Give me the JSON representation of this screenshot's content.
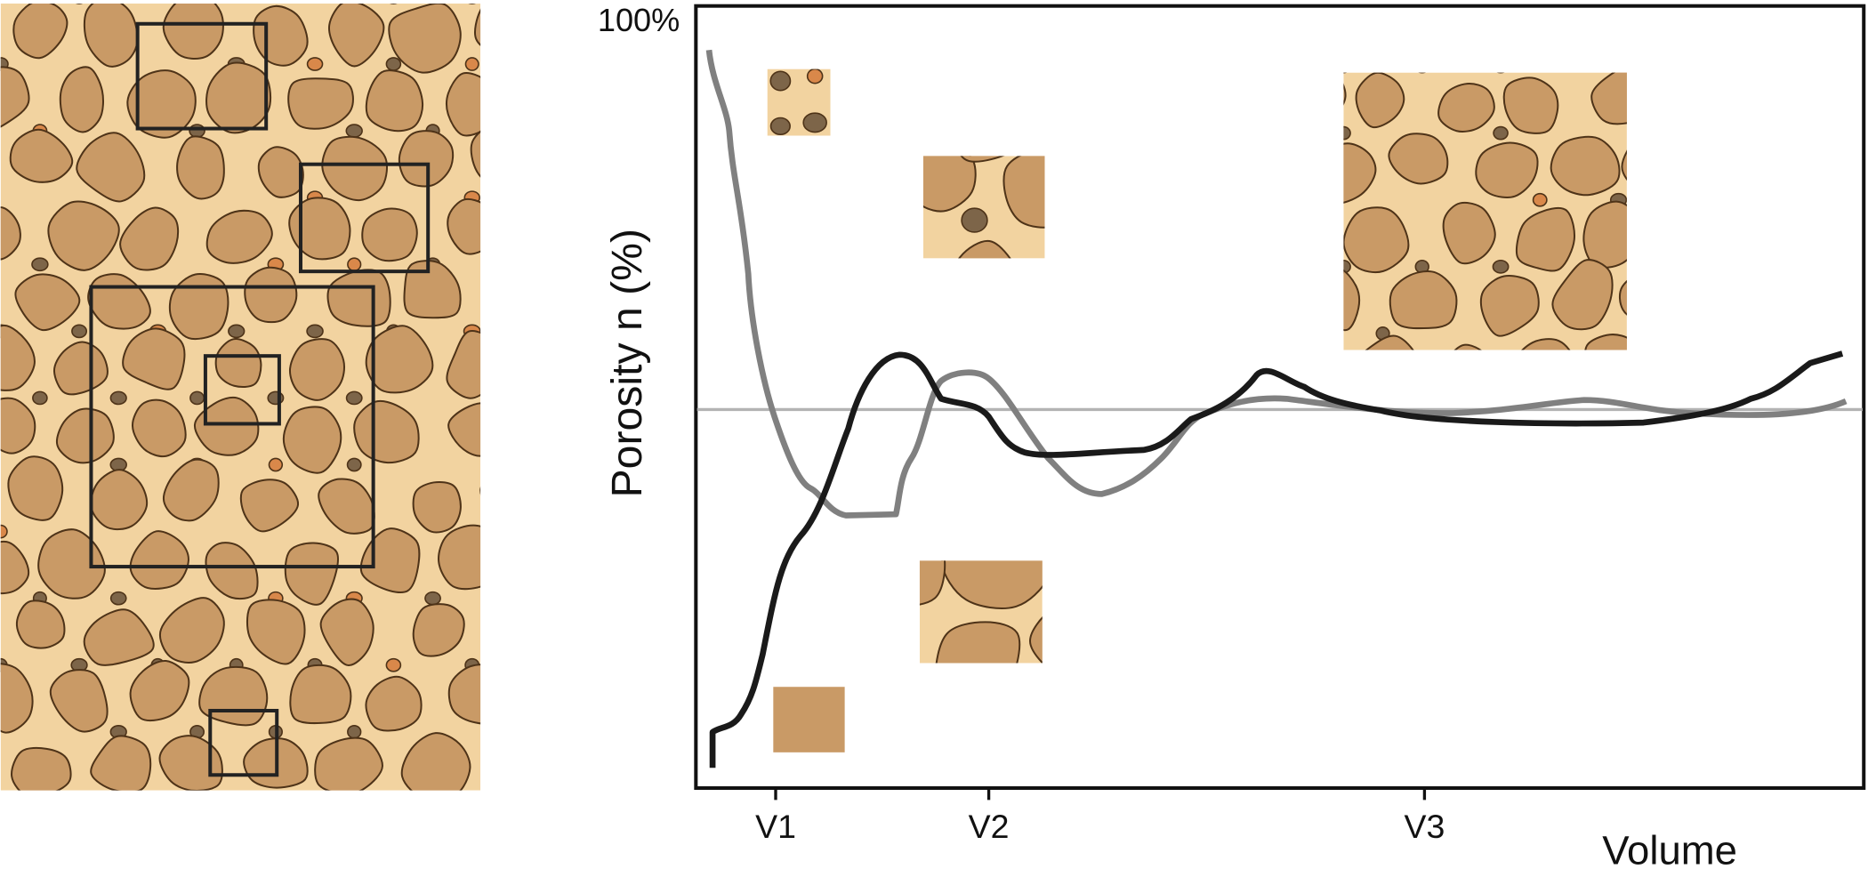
{
  "axis": {
    "top_label": "100%",
    "y_label": "Porosity n (%)",
    "x_label": "Volume",
    "ticks": [
      "V1",
      "V2",
      "V3"
    ]
  }
}
